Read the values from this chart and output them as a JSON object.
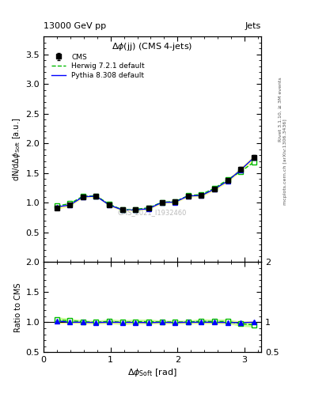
{
  "title_left": "13000 GeV pp",
  "title_right": "Jets",
  "plot_title": "Δϕ(jj) (CMS 4-jets)",
  "ylabel_main": "dN/dΔϕ$_{\\rm Soft}$ [a.u.]",
  "ylabel_ratio": "Ratio to CMS",
  "xlabel": "Δϕ$_{\\rm Soft}$ [rad]",
  "watermark": "CMS_2021_I1932460",
  "rivet_label": "Rivet 3.1.10, ≥ 3M events",
  "arxiv_label": "mcplots.cern.ch [arXiv:1306.3436]",
  "cms_x": [
    0.196,
    0.393,
    0.589,
    0.785,
    0.982,
    1.178,
    1.374,
    1.571,
    1.767,
    1.963,
    2.16,
    2.356,
    2.552,
    2.749,
    2.945,
    3.142
  ],
  "cms_y": [
    0.908,
    0.96,
    1.1,
    1.115,
    0.96,
    0.88,
    0.88,
    0.905,
    1.005,
    1.015,
    1.115,
    1.12,
    1.23,
    1.37,
    1.565,
    1.76
  ],
  "cms_yerr": [
    0.02,
    0.02,
    0.02,
    0.02,
    0.02,
    0.02,
    0.02,
    0.02,
    0.02,
    0.02,
    0.02,
    0.02,
    0.025,
    0.03,
    0.035,
    0.04
  ],
  "herwig_x": [
    0.196,
    0.393,
    0.589,
    0.785,
    0.982,
    1.178,
    1.374,
    1.571,
    1.767,
    1.963,
    2.16,
    2.356,
    2.552,
    2.749,
    2.945,
    3.142
  ],
  "herwig_y": [
    0.945,
    0.985,
    1.11,
    1.115,
    0.975,
    0.88,
    0.89,
    0.915,
    1.01,
    1.02,
    1.12,
    1.14,
    1.245,
    1.39,
    1.525,
    1.685
  ],
  "pythia_x": [
    0.196,
    0.393,
    0.589,
    0.785,
    0.982,
    1.178,
    1.374,
    1.571,
    1.767,
    1.963,
    2.16,
    2.356,
    2.552,
    2.749,
    2.945,
    3.142
  ],
  "pythia_y": [
    0.93,
    0.96,
    1.1,
    1.11,
    0.96,
    0.878,
    0.878,
    0.9,
    1.005,
    1.01,
    1.115,
    1.12,
    1.23,
    1.365,
    1.555,
    1.76
  ],
  "herwig_ratio": [
    1.04,
    1.026,
    1.009,
    1.0,
    1.016,
    1.0,
    1.011,
    1.011,
    1.005,
    1.005,
    1.004,
    1.018,
    1.012,
    1.015,
    0.974,
    0.957
  ],
  "pythia_ratio": [
    1.024,
    1.0,
    1.0,
    0.996,
    1.0,
    0.998,
    0.998,
    0.994,
    1.0,
    0.995,
    1.0,
    1.0,
    1.0,
    0.996,
    0.994,
    1.0
  ],
  "herwig_band_lo": [
    0.99,
    0.986,
    0.979,
    0.97,
    0.976,
    0.96,
    0.971,
    0.971,
    0.975,
    0.975,
    0.974,
    0.978,
    0.972,
    0.975,
    0.934,
    0.917
  ],
  "herwig_band_hi": [
    1.09,
    1.066,
    1.039,
    1.03,
    1.056,
    1.04,
    1.051,
    1.051,
    1.035,
    1.035,
    1.034,
    1.058,
    1.052,
    1.055,
    1.014,
    0.997
  ],
  "ylim_main": [
    0.0,
    3.8
  ],
  "ylim_ratio": [
    0.5,
    2.0
  ],
  "xlim": [
    0.0,
    3.25
  ],
  "cms_color": "black",
  "herwig_color": "#00bb00",
  "pythia_color": "blue",
  "herwig_band_color": "#ccff99",
  "cms_band_color": "#ffff99",
  "yticks_main": [
    0.5,
    1.0,
    1.5,
    2.0,
    2.5,
    3.0,
    3.5
  ],
  "yticks_ratio": [
    0.5,
    1.0,
    1.5,
    2.0
  ],
  "xticks": [
    0,
    1,
    2,
    3
  ]
}
